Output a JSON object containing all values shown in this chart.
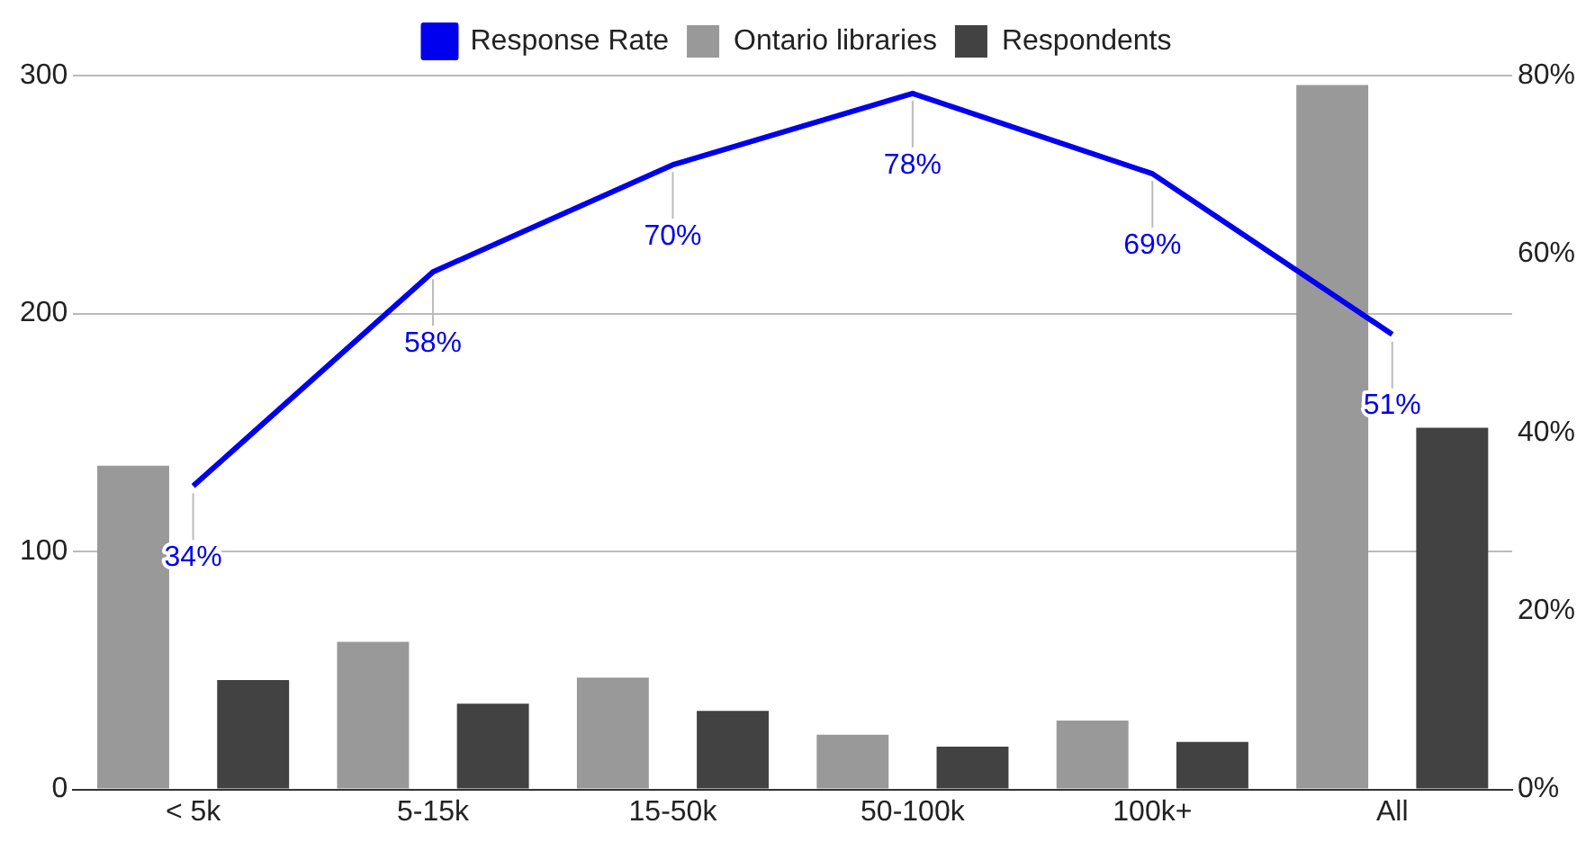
{
  "chart_data": {
    "type": "bar",
    "categories": [
      "< 5k",
      "5-15k",
      "15-50k",
      "50-100k",
      "100k+",
      "All"
    ],
    "series": [
      {
        "name": "Ontario libraries",
        "color": "#999999",
        "values": [
          136,
          62,
          47,
          23,
          29,
          296
        ]
      },
      {
        "name": "Respondents",
        "color": "#424242",
        "values": [
          46,
          36,
          33,
          18,
          20,
          152
        ]
      },
      {
        "name": "Response Rate",
        "type": "line",
        "axis": "y2",
        "color": "#0000ee",
        "values": [
          34,
          58,
          70,
          78,
          69,
          51
        ],
        "value_labels": [
          "34%",
          "58%",
          "70%",
          "78%",
          "69%",
          "51%"
        ]
      }
    ],
    "ylim": [
      0,
      300
    ],
    "yticks": [
      0,
      100,
      200,
      300
    ],
    "y2lim": [
      0,
      80
    ],
    "y2ticks": [
      {
        "value": 0,
        "label": "0%"
      },
      {
        "value": 20,
        "label": "20%"
      },
      {
        "value": 40,
        "label": "40%"
      },
      {
        "value": 60,
        "label": "60%"
      },
      {
        "value": 80,
        "label": "80%"
      }
    ],
    "grid": "y",
    "legend": "top",
    "marker": "none"
  }
}
